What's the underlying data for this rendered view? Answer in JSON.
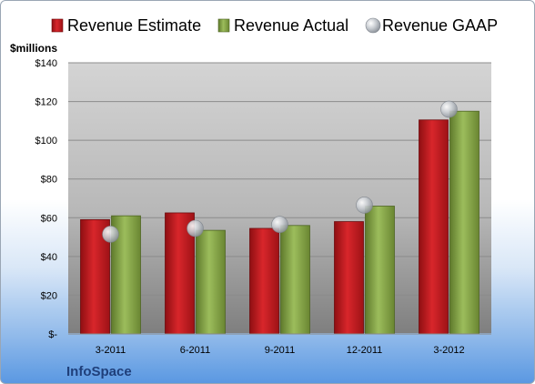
{
  "chart_data": {
    "type": "bar",
    "categories": [
      "3-2011",
      "6-2011",
      "9-2011",
      "12-2011",
      "3-2012"
    ],
    "series": [
      {
        "name": "Revenue Estimate",
        "kind": "bar",
        "color": "#c8181e",
        "values": [
          59,
          62.5,
          54.5,
          58,
          110.5
        ]
      },
      {
        "name": "Revenue Actual",
        "kind": "bar",
        "color": "#8aa84a",
        "values": [
          61,
          53.5,
          56,
          66,
          115
        ]
      },
      {
        "name": "Revenue GAAP",
        "kind": "marker",
        "color": "#b8bcc2",
        "values": [
          51.5,
          54.5,
          56.5,
          66.5,
          116
        ]
      }
    ],
    "y_unit_label": "$millions",
    "yticks": [
      "$-",
      "$20",
      "$40",
      "$60",
      "$80",
      "$100",
      "$120",
      "$140"
    ],
    "ylim": [
      0,
      140
    ],
    "grid": true,
    "legend": "top"
  },
  "company": "InfoSpace"
}
